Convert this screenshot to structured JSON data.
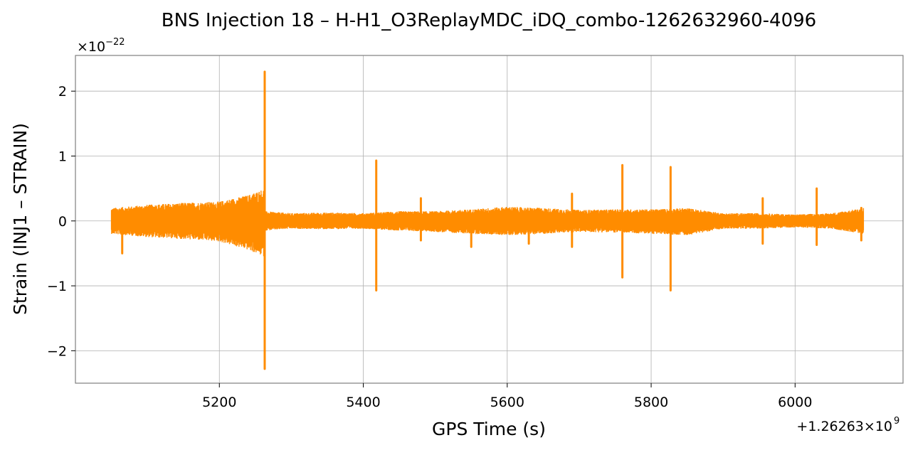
{
  "chart_data": {
    "type": "line",
    "title": "BNS Injection 18 – H-H1_O3ReplayMDC_iDQ_combo-1262632960-4096",
    "xlabel": "GPS Time (s)",
    "ylabel": "Strain (INJ1 – STRAIN)",
    "x_offset_label": "+1.26263×10",
    "x_offset_exponent": "9",
    "y_scale_label": "×10",
    "y_scale_exponent": "−22",
    "xlim": [
      5000,
      6150
    ],
    "ylim": [
      -2.5,
      2.55
    ],
    "xticks": [
      5200,
      5400,
      5600,
      5800,
      6000
    ],
    "xtick_labels": [
      "5200",
      "5400",
      "5600",
      "5800",
      "6000"
    ],
    "yticks": [
      -2,
      -1,
      0,
      1,
      2
    ],
    "ytick_labels": [
      "−2",
      "−1",
      "0",
      "1",
      "2"
    ],
    "grid": true,
    "series": [
      {
        "color": "#ff8c00",
        "x_range": [
          5050,
          6095
        ],
        "background_envelope": [
          [
            5050,
            0.2,
            -0.2
          ],
          [
            5100,
            0.25,
            -0.25
          ],
          [
            5150,
            0.28,
            -0.28
          ],
          [
            5200,
            0.3,
            -0.32
          ],
          [
            5240,
            0.4,
            -0.45
          ],
          [
            5262,
            0.5,
            -0.55
          ],
          [
            5263,
            0.15,
            -0.15
          ],
          [
            5300,
            0.12,
            -0.12
          ],
          [
            5350,
            0.13,
            -0.13
          ],
          [
            5400,
            0.12,
            -0.12
          ],
          [
            5450,
            0.15,
            -0.15
          ],
          [
            5500,
            0.15,
            -0.17
          ],
          [
            5550,
            0.18,
            -0.2
          ],
          [
            5600,
            0.22,
            -0.22
          ],
          [
            5650,
            0.2,
            -0.2
          ],
          [
            5700,
            0.17,
            -0.17
          ],
          [
            5750,
            0.18,
            -0.18
          ],
          [
            5800,
            0.18,
            -0.2
          ],
          [
            5850,
            0.2,
            -0.22
          ],
          [
            5900,
            0.12,
            -0.12
          ],
          [
            5950,
            0.12,
            -0.12
          ],
          [
            6000,
            0.1,
            -0.1
          ],
          [
            6050,
            0.12,
            -0.12
          ],
          [
            6095,
            0.2,
            -0.2
          ]
        ],
        "glitches": [
          {
            "x": 5065,
            "min": -0.5,
            "max": 0.1
          },
          {
            "x": 5263,
            "min": -2.28,
            "max": 2.3
          },
          {
            "x": 5418,
            "min": -1.07,
            "max": 0.93
          },
          {
            "x": 5480,
            "min": -0.3,
            "max": 0.35
          },
          {
            "x": 5550,
            "min": -0.4,
            "max": 0.1
          },
          {
            "x": 5630,
            "min": -0.35,
            "max": 0.1
          },
          {
            "x": 5690,
            "min": -0.4,
            "max": 0.42
          },
          {
            "x": 5760,
            "min": -0.87,
            "max": 0.86
          },
          {
            "x": 5827,
            "min": -1.07,
            "max": 0.83
          },
          {
            "x": 5955,
            "min": -0.35,
            "max": 0.35
          },
          {
            "x": 6030,
            "min": -0.37,
            "max": 0.5
          },
          {
            "x": 6092,
            "min": -0.3,
            "max": 0.2
          }
        ]
      }
    ]
  }
}
